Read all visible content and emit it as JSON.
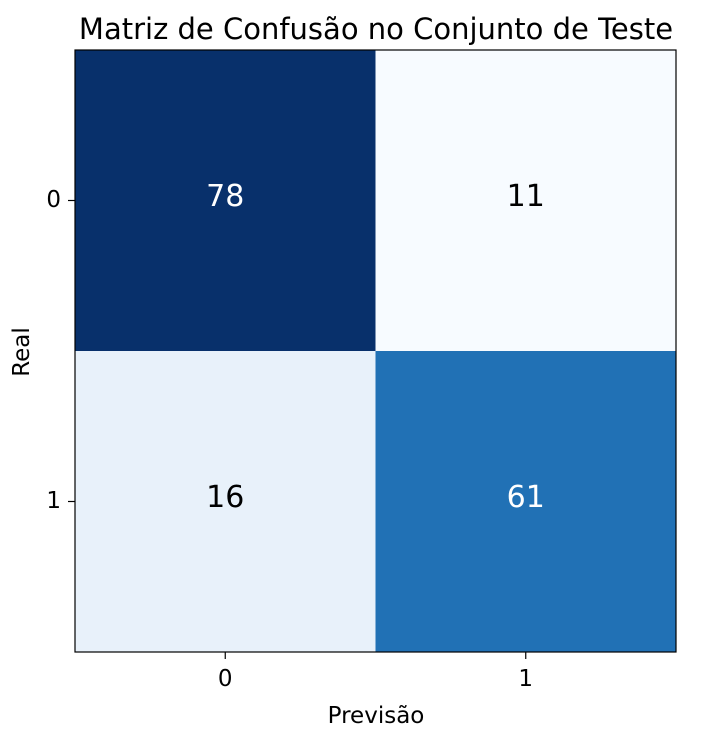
{
  "chart_data": {
    "type": "heatmap",
    "title": "Matriz de Confusão no Conjunto de Teste",
    "xlabel": "Previsão",
    "ylabel": "Real",
    "x_categories": [
      "0",
      "1"
    ],
    "y_categories": [
      "0",
      "1"
    ],
    "values": [
      [
        78,
        11
      ],
      [
        16,
        61
      ]
    ],
    "colormap": "Blues",
    "color_range": [
      11,
      78
    ],
    "cell_colors": [
      [
        "#08306b",
        "#f7fbff"
      ],
      [
        "#e8f1fa",
        "#2171b5"
      ]
    ],
    "text_colors": [
      [
        "#ffffff",
        "#000000"
      ],
      [
        "#000000",
        "#ffffff"
      ]
    ],
    "grid": false,
    "legend": "none"
  }
}
